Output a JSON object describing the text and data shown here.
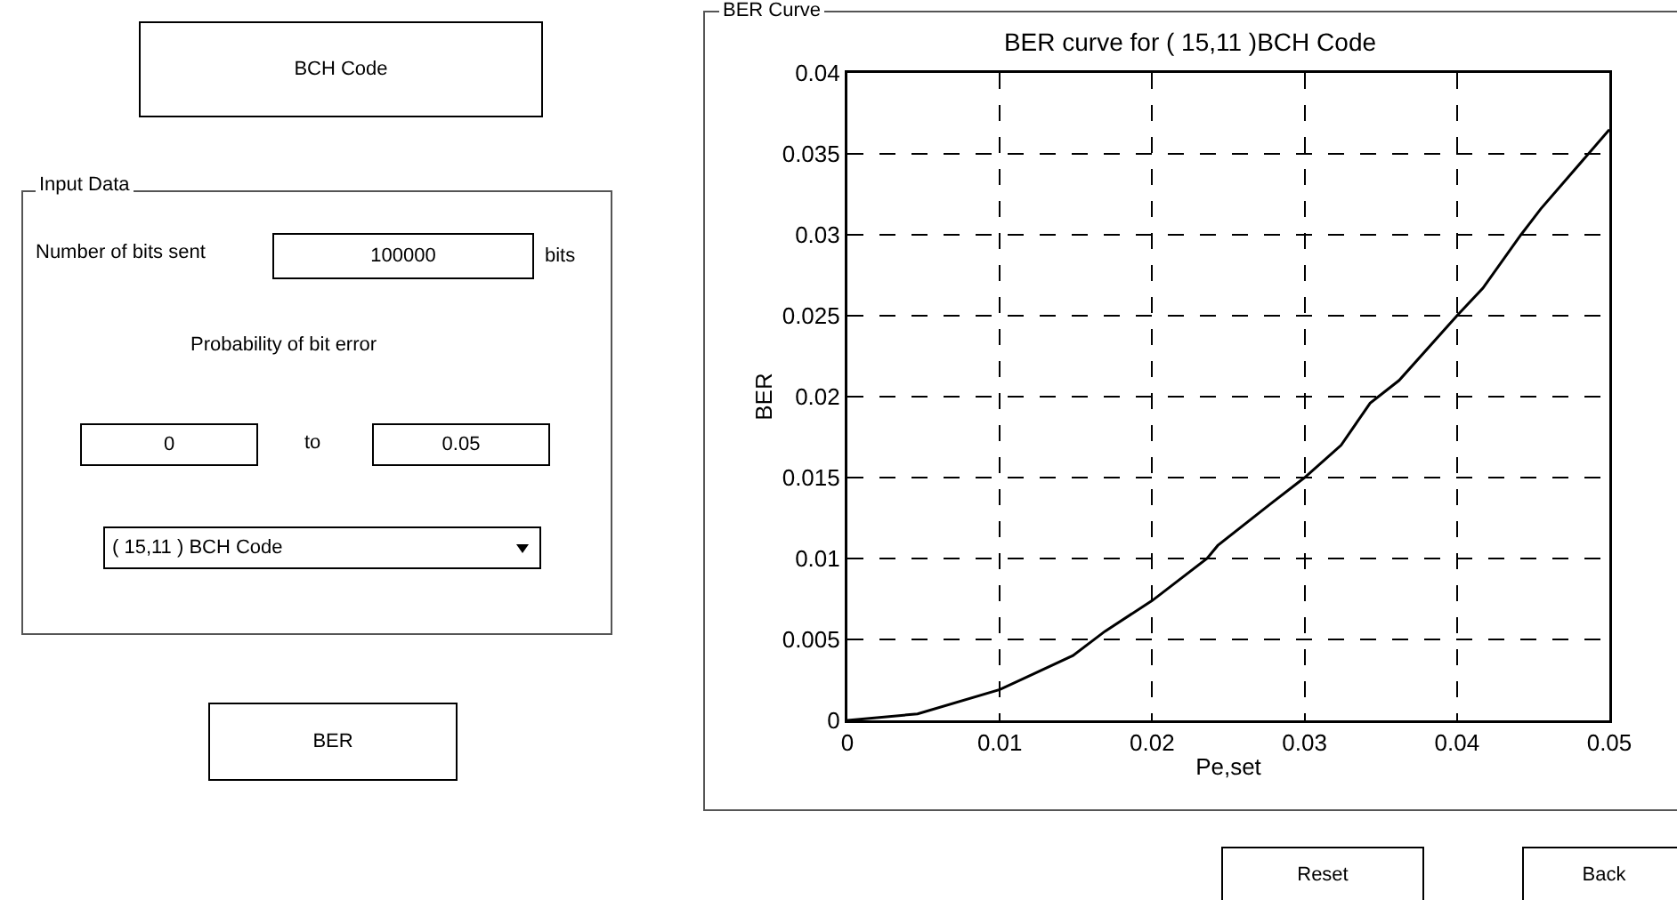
{
  "chart_data": [
    {
      "type": "other",
      "annotations": [
        "BCH Code",
        "Input Data",
        "Number of bits sent",
        "100000",
        "bits",
        "Probability of bit error",
        "0",
        "to",
        "0.05",
        "( 15,11 ) BCH Code",
        "BER",
        "BER Curve",
        "Reset",
        "Back"
      ]
    },
    {
      "type": "line",
      "title": "BER curve for ( 15,11 )BCH Code",
      "xlabel": "Pe,set",
      "ylabel": "BER",
      "x": [
        0,
        0.0046,
        0.01,
        0.0148,
        0.0169,
        0.02,
        0.0236,
        0.0243,
        0.0278,
        0.03,
        0.0324,
        0.0343,
        0.0362,
        0.04,
        0.0417,
        0.0442,
        0.0455,
        0.05
      ],
      "series": [
        {
          "color": "#000000",
          "values": [
            0,
            0.0004,
            0.0019,
            0.004,
            0.0055,
            0.0074,
            0.01,
            0.0108,
            0.0134,
            0.015,
            0.017,
            0.0196,
            0.021,
            0.025,
            0.0267,
            0.03,
            0.0316,
            0.0365
          ]
        }
      ],
      "xlim": [
        0,
        0.05
      ],
      "xticks": [
        0,
        0.01,
        0.02,
        0.03,
        0.04,
        0.05
      ],
      "ylim": [
        0,
        0.04
      ],
      "yticks": [
        0,
        0.005,
        0.01,
        0.015,
        0.02,
        0.025,
        0.03,
        0.035,
        0.04
      ],
      "grid": true,
      "marker": "none",
      "line_style": "solid"
    }
  ]
}
